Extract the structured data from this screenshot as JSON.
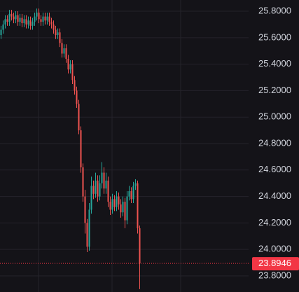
{
  "chart_data": {
    "type": "candlestick",
    "open": [
      25.62,
      25.66,
      25.7,
      25.74,
      25.72,
      25.78,
      25.76,
      25.74,
      25.77,
      25.72,
      25.75,
      25.71,
      25.74,
      25.7,
      25.73,
      25.69,
      25.72,
      25.76,
      25.79,
      25.74,
      25.72,
      25.76,
      25.73,
      25.76,
      25.72,
      25.7,
      25.66,
      25.62,
      25.64,
      25.56,
      25.48,
      25.52,
      25.44,
      25.36,
      25.4,
      25.28,
      25.2,
      25.1,
      24.9,
      24.62,
      24.4,
      24.2,
      24.02,
      24.3,
      24.48,
      24.42,
      24.52,
      24.4,
      24.5,
      24.58,
      24.46,
      24.52,
      24.36,
      24.3,
      24.38,
      24.32,
      24.4,
      24.34,
      24.28,
      24.36,
      24.22,
      24.4,
      24.44,
      24.38,
      24.48,
      24.5,
      24.16
    ],
    "high": [
      25.69,
      25.73,
      25.77,
      25.77,
      25.81,
      25.81,
      25.79,
      25.8,
      25.8,
      25.78,
      25.78,
      25.77,
      25.77,
      25.76,
      25.76,
      25.75,
      25.79,
      25.82,
      25.82,
      25.77,
      25.79,
      25.79,
      25.79,
      25.79,
      25.75,
      25.73,
      25.69,
      25.67,
      25.67,
      25.59,
      25.55,
      25.55,
      25.47,
      25.43,
      25.43,
      25.31,
      25.23,
      25.13,
      24.93,
      24.65,
      24.45,
      24.23,
      24.35,
      24.55,
      24.52,
      24.58,
      24.56,
      24.56,
      24.66,
      24.62,
      24.58,
      24.55,
      24.4,
      24.42,
      24.41,
      24.44,
      24.43,
      24.38,
      24.4,
      24.39,
      24.44,
      24.48,
      24.47,
      24.51,
      24.53,
      24.52,
      24.18
    ],
    "low": [
      25.59,
      25.63,
      25.67,
      25.69,
      25.69,
      25.73,
      25.71,
      25.71,
      25.69,
      25.69,
      25.68,
      25.68,
      25.67,
      25.67,
      25.66,
      25.66,
      25.69,
      25.73,
      25.71,
      25.69,
      25.69,
      25.7,
      25.7,
      25.69,
      25.67,
      25.63,
      25.59,
      25.59,
      25.53,
      25.45,
      25.45,
      25.41,
      25.33,
      25.33,
      25.25,
      25.17,
      25.07,
      24.87,
      24.58,
      24.36,
      24.12,
      23.98,
      23.99,
      24.27,
      24.38,
      24.39,
      24.36,
      24.37,
      24.46,
      24.42,
      24.42,
      24.32,
      24.26,
      24.27,
      24.29,
      24.29,
      24.3,
      24.24,
      24.25,
      24.16,
      24.19,
      24.37,
      24.35,
      24.35,
      24.45,
      24.12,
      23.7
    ],
    "close": [
      25.66,
      25.7,
      25.74,
      25.72,
      25.78,
      25.76,
      25.74,
      25.77,
      25.72,
      25.75,
      25.71,
      25.74,
      25.7,
      25.73,
      25.69,
      25.72,
      25.76,
      25.79,
      25.74,
      25.72,
      25.76,
      25.73,
      25.76,
      25.72,
      25.7,
      25.66,
      25.62,
      25.64,
      25.56,
      25.48,
      25.52,
      25.44,
      25.36,
      25.4,
      25.28,
      25.2,
      25.1,
      24.9,
      24.62,
      24.4,
      24.2,
      24.02,
      24.3,
      24.48,
      24.42,
      24.52,
      24.4,
      24.5,
      24.58,
      24.46,
      24.52,
      24.36,
      24.3,
      24.38,
      24.32,
      24.4,
      24.34,
      24.28,
      24.36,
      24.22,
      24.4,
      24.44,
      24.38,
      24.48,
      24.5,
      24.16,
      23.8946
    ],
    "up_color": "#26a69a",
    "down_color": "#ef5350",
    "ylim": [
      23.678,
      25.885
    ],
    "yticks": [
      {
        "value": 23.8,
        "label": "23.8000"
      },
      {
        "value": 24.0,
        "label": "24.0000"
      },
      {
        "value": 24.2,
        "label": "24.2000"
      },
      {
        "value": 24.4,
        "label": "24.4000"
      },
      {
        "value": 24.6,
        "label": "24.6000"
      },
      {
        "value": 24.8,
        "label": "24.8000"
      },
      {
        "value": 25.0,
        "label": "25.0000"
      },
      {
        "value": 25.2,
        "label": "25.2000"
      },
      {
        "value": 25.4,
        "label": "25.4000"
      },
      {
        "value": 25.6,
        "label": "25.6000"
      },
      {
        "value": 25.8,
        "label": "25.8000"
      }
    ],
    "last_price": {
      "value": 23.8946,
      "label": "23.8946",
      "color": "#f23645"
    },
    "grid": true
  }
}
